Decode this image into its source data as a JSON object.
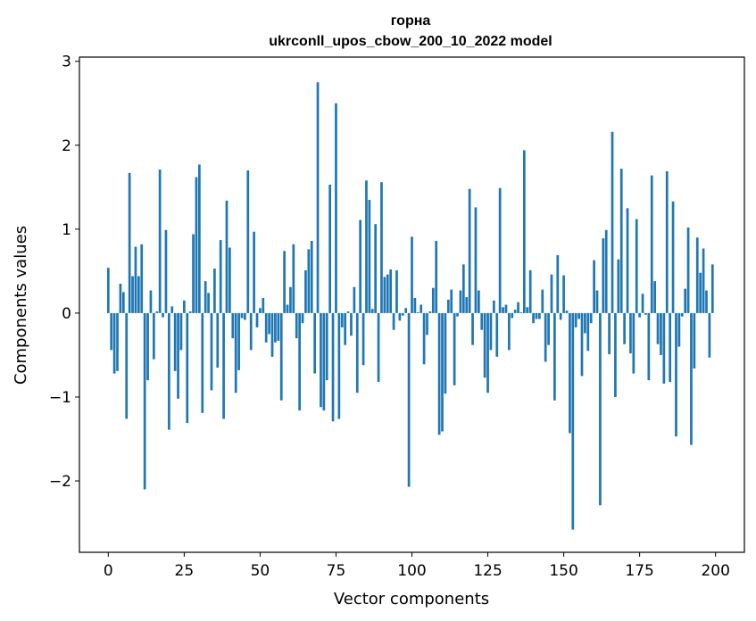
{
  "chart_data": {
    "type": "bar",
    "title": "горна",
    "subtitle": "ukrconll_upos_cbow_200_10_2022 model",
    "xlabel": "Vector components",
    "ylabel": "Components values",
    "xlim": [
      -9.5,
      209.5
    ],
    "ylim": [
      -2.85,
      3.05
    ],
    "xticks": [
      0,
      25,
      50,
      75,
      100,
      125,
      150,
      175,
      200
    ],
    "yticks": [
      -2,
      -1,
      0,
      1,
      2,
      3
    ],
    "xtick_labels": [
      "0",
      "25",
      "50",
      "75",
      "100",
      "125",
      "150",
      "175",
      "200"
    ],
    "ytick_labels": [
      "−2",
      "−1",
      "0",
      "1",
      "2",
      "3"
    ],
    "grid": false,
    "bar_color": "#1f77b4",
    "values": [
      0.54,
      -0.44,
      -0.72,
      -0.69,
      0.35,
      0.25,
      -1.26,
      1.67,
      0.44,
      0.79,
      0.44,
      0.82,
      -2.1,
      -0.8,
      0.27,
      -0.55,
      0.02,
      1.71,
      -0.05,
      0.99,
      -1.39,
      0.08,
      -0.69,
      -1.02,
      -0.44,
      0.15,
      -1.31,
      0.02,
      0.94,
      1.62,
      1.77,
      -1.19,
      0.38,
      0.24,
      -0.92,
      0.53,
      -0.65,
      0.87,
      -1.26,
      1.34,
      0.78,
      -0.3,
      -0.95,
      -0.68,
      -0.06,
      -0.08,
      1.7,
      -0.44,
      0.97,
      -0.17,
      0.06,
      0.18,
      -0.35,
      -0.25,
      -0.52,
      -0.35,
      -0.33,
      -1.04,
      0.74,
      0.1,
      0.31,
      0.82,
      -0.3,
      -1.16,
      -0.12,
      0.51,
      0.76,
      0.86,
      -0.72,
      2.75,
      -1.12,
      -1.16,
      -0.8,
      1.53,
      -1.29,
      2.5,
      -1.26,
      -0.17,
      -0.38,
      0.02,
      -0.27,
      0.31,
      -0.95,
      1.11,
      -0.62,
      1.58,
      1.35,
      0.05,
      1.06,
      -0.82,
      1.56,
      0.43,
      0.46,
      0.52,
      -0.2,
      0.51,
      -0.09,
      -0.03,
      0.06,
      -2.07,
      0.91,
      0.18,
      0.01,
      0.1,
      -0.61,
      -0.26,
      0.02,
      0.3,
      0.86,
      -1.45,
      -1.41,
      -0.96,
      0.16,
      0.28,
      -0.86,
      -0.04,
      0.27,
      0.58,
      0.19,
      1.48,
      -0.38,
      1.26,
      0.27,
      -0.2,
      -0.77,
      -0.95,
      -0.44,
      0.15,
      -0.52,
      1.49,
      0.07,
      0.1,
      -0.44,
      -0.06,
      0.04,
      0.13,
      0.01,
      1.94,
      0.07,
      0.51,
      -0.12,
      -0.07,
      -0.07,
      0.28,
      -0.58,
      -0.38,
      0.46,
      -1.04,
      0.69,
      -0.08,
      0.45,
      0.03,
      -1.43,
      -2.58,
      -0.17,
      -0.07,
      -0.75,
      -0.24,
      -0.45,
      -0.12,
      0.63,
      0.27,
      -2.29,
      0.89,
      0.99,
      -0.49,
      2.16,
      -1.0,
      0.64,
      1.72,
      -0.37,
      1.25,
      -0.48,
      -0.72,
      1.12,
      -0.05,
      0.23,
      -0.02,
      -0.8,
      1.64,
      0.38,
      -0.37,
      -0.5,
      -0.84,
      1.69,
      -0.82,
      1.33,
      -1.47,
      -0.4,
      -0.04,
      0.29,
      1.02,
      -1.57,
      -0.66,
      0.9,
      0.48,
      0.77,
      0.27,
      -0.53,
      0.58
    ]
  }
}
